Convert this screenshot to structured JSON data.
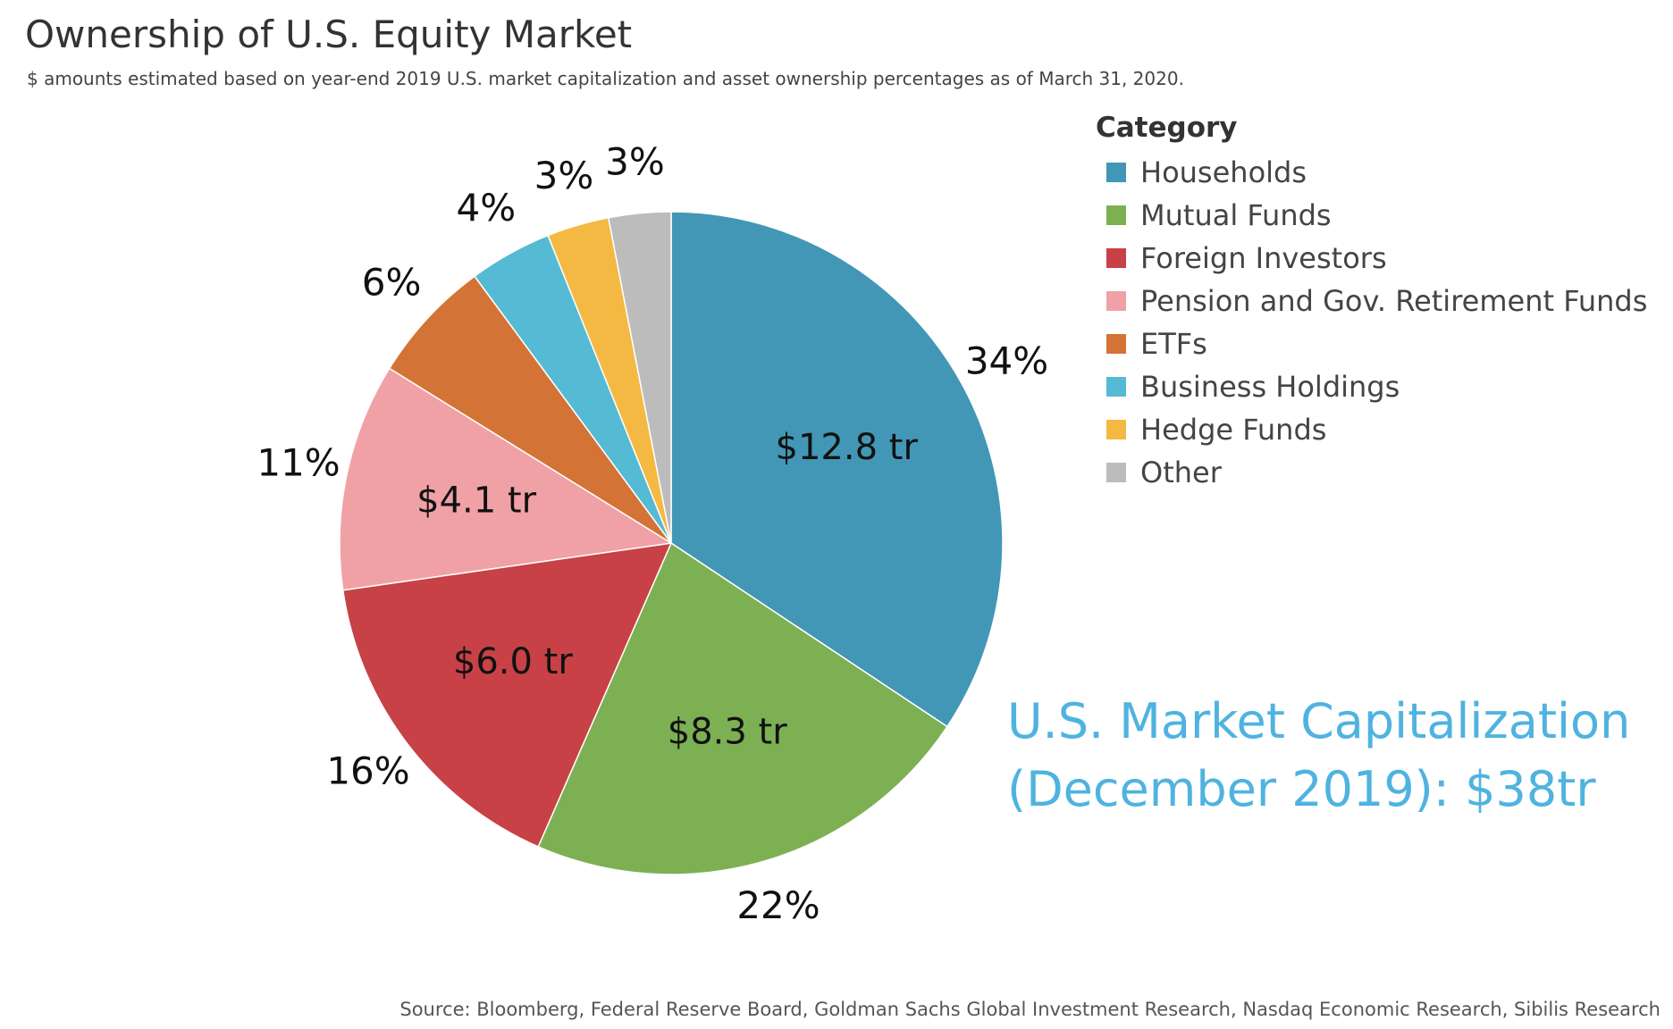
{
  "title": "Ownership of U.S. Equity Market",
  "subtitle": "$ amounts estimated based on year-end 2019 U.S. market capitalization and asset ownership percentages as of March 31, 2020.",
  "legend": {
    "title": "Category"
  },
  "callout": {
    "line1": "U.S. Market Capitalization",
    "line2": "(December 2019): $38tr"
  },
  "source": "Source: Bloomberg, Federal Reserve Board, Goldman Sachs Global Investment Research, Nasdaq Economic Research, Sibilis Research",
  "chart_data": {
    "type": "pie",
    "categories": [
      "Households",
      "Mutual Funds",
      "Foreign Investors",
      "Pension and Gov. Retirement Funds",
      "ETFs",
      "Business Holdings",
      "Hedge Funds",
      "Other"
    ],
    "values": [
      34,
      22,
      16,
      11,
      6,
      4,
      3,
      3
    ],
    "percent_labels": [
      "34%",
      "22%",
      "16%",
      "11%",
      "6%",
      "4%",
      "3%",
      "3%"
    ],
    "value_labels": [
      "$12.8 tr",
      "$8.3 tr",
      "$6.0 tr",
      "$4.1 tr",
      "",
      "",
      "",
      ""
    ],
    "colors": [
      "#4297b6",
      "#7db053",
      "#c84146",
      "#f0a1a6",
      "#d37335",
      "#55bad3",
      "#f4b942",
      "#bcbcbc"
    ],
    "start": "12 o'clock",
    "direction": "clockwise",
    "legend_position": "right"
  }
}
